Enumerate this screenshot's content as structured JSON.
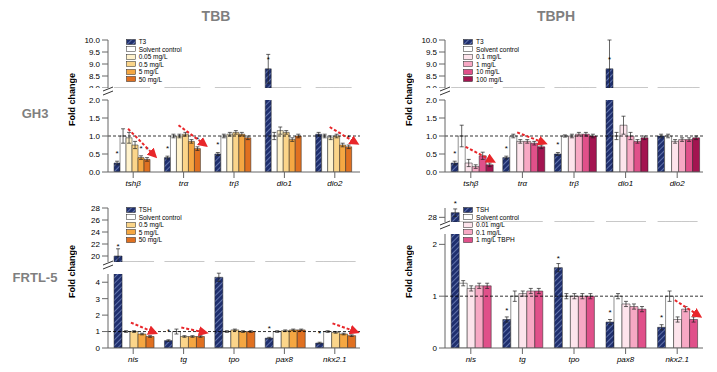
{
  "figure": {
    "columns": [
      "TBB",
      "TBPH"
    ],
    "rows": [
      "GH3",
      "FRTL-5"
    ]
  },
  "chart_data": [
    {
      "type": "bar",
      "ylabel": "Fold change",
      "categories": [
        "tshβ",
        "trα",
        "trβ",
        "dio1",
        "dio2"
      ],
      "series": [
        {
          "name": "T3",
          "color": "#1f2f6e",
          "values": [
            0.25,
            0.4,
            0.5,
            8.8,
            1.05
          ],
          "errors": [
            0.05,
            0.04,
            0.04,
            0.6,
            0.05
          ],
          "significance": [
            "*",
            "*",
            "*",
            "*",
            null
          ]
        },
        {
          "name": "Solvent control",
          "color": "#ffffff",
          "values": [
            1,
            1,
            1,
            1,
            1
          ],
          "errors": [
            0.2,
            0.05,
            0.05,
            0.1,
            0.05
          ]
        },
        {
          "name": "0.05 mg/L",
          "color": "#fff2cc",
          "values": [
            0.95,
            1.0,
            1.05,
            1.15,
            0.95
          ],
          "errors": [
            0.15,
            0.05,
            0.05,
            0.1,
            0.05
          ]
        },
        {
          "name": "0.5 mg/L",
          "color": "#fbd58a",
          "values": [
            0.75,
            1.05,
            1.1,
            1.1,
            1.0
          ],
          "errors": [
            0.1,
            0.05,
            0.05,
            0.05,
            0.05
          ]
        },
        {
          "name": "5 mg/L",
          "color": "#f5a742",
          "values": [
            0.4,
            0.85,
            1.05,
            0.9,
            0.75
          ],
          "errors": [
            0.05,
            0.05,
            0.05,
            0.05,
            0.05
          ],
          "significance": [
            "*",
            null,
            null,
            null,
            null
          ]
        },
        {
          "name": "50 mg/L",
          "color": "#e07020",
          "values": [
            0.35,
            0.65,
            0.95,
            1.0,
            0.7
          ],
          "errors": [
            0.05,
            0.05,
            0.05,
            0.05,
            0.05
          ],
          "significance": [
            "*",
            "*",
            null,
            null,
            "*"
          ]
        }
      ],
      "ylim": [
        0,
        10
      ],
      "ybreak": [
        2,
        8
      ],
      "yticks": [
        {
          "value": 0,
          "label": "0.0"
        },
        {
          "value": 0.5,
          "label": "0.5"
        },
        {
          "value": 1,
          "label": "1.0"
        },
        {
          "value": 1.5,
          "label": "1.5"
        },
        {
          "value": 2,
          "label": "2.0"
        },
        {
          "value": 8,
          "label": "8.0"
        },
        {
          "value": 8.5,
          "label": "8.5"
        },
        {
          "value": 9,
          "label": "9.0"
        },
        {
          "value": 9.5,
          "label": "9.5"
        },
        {
          "value": 10,
          "label": "10.0"
        }
      ],
      "hline": 1,
      "legend": "upper left",
      "trend_arrows": [
        "tshβ",
        "trα",
        "dio2"
      ]
    },
    {
      "type": "bar",
      "ylabel": "Fold change",
      "categories": [
        "tshβ",
        "trα",
        "trβ",
        "dio1",
        "dio2"
      ],
      "series": [
        {
          "name": "T3",
          "color": "#1f2f6e",
          "values": [
            0.25,
            0.4,
            0.5,
            8.8,
            1.0
          ],
          "errors": [
            0.05,
            0.04,
            0.04,
            1.2,
            0.05
          ],
          "significance": [
            "*",
            "*",
            "*",
            "*",
            null
          ]
        },
        {
          "name": "Solvent control",
          "color": "#ffffff",
          "values": [
            1,
            1,
            1,
            1,
            1
          ],
          "errors": [
            0.3,
            0.05,
            0.03,
            0.1,
            0.05
          ]
        },
        {
          "name": "0.1 mg/L",
          "color": "#fde4ec",
          "values": [
            0.25,
            0.85,
            1.0,
            1.3,
            0.85
          ],
          "errors": [
            0.1,
            0.05,
            0.05,
            0.25,
            0.05
          ]
        },
        {
          "name": "1 mg/L",
          "color": "#f7a8c4",
          "values": [
            0.15,
            0.85,
            1.05,
            1.0,
            0.9
          ],
          "errors": [
            0.05,
            0.05,
            0.05,
            0.1,
            0.05
          ]
        },
        {
          "name": "10 mg/L",
          "color": "#e0508a",
          "values": [
            0.45,
            0.8,
            1.05,
            0.85,
            0.9
          ],
          "errors": [
            0.1,
            0.05,
            0.05,
            0.05,
            0.05
          ]
        },
        {
          "name": "100 mg/L",
          "color": "#a31450",
          "values": [
            0.2,
            0.7,
            1.0,
            0.95,
            0.95
          ],
          "errors": [
            0.05,
            0.05,
            0.05,
            0.05,
            0.05
          ]
        }
      ],
      "ylim": [
        0,
        10
      ],
      "ybreak": [
        2,
        8
      ],
      "yticks": [
        {
          "value": 0,
          "label": "0.0"
        },
        {
          "value": 0.5,
          "label": "0.5"
        },
        {
          "value": 1,
          "label": "1.0"
        },
        {
          "value": 1.5,
          "label": "1.5"
        },
        {
          "value": 2,
          "label": "2.0"
        },
        {
          "value": 8,
          "label": "8.0"
        },
        {
          "value": 8.5,
          "label": "8.5"
        },
        {
          "value": 9,
          "label": "9.0"
        },
        {
          "value": 9.5,
          "label": "9.5"
        },
        {
          "value": 10,
          "label": "10.0"
        }
      ],
      "hline": 1,
      "legend": "upper left",
      "trend_arrows": [
        "tshβ",
        "trα"
      ]
    },
    {
      "type": "bar",
      "ylabel": "Fold change",
      "categories": [
        "nis",
        "tg",
        "tpo",
        "pax8",
        "nkx2.1"
      ],
      "series": [
        {
          "name": "TSH",
          "color": "#1f2f6e",
          "values": [
            20,
            0.45,
            4.3,
            0.6,
            0.3
          ],
          "errors": [
            1.2,
            0.05,
            0.25,
            0.05,
            0.05
          ],
          "significance": [
            "*",
            "*",
            "*",
            "*",
            "*"
          ]
        },
        {
          "name": "Solvent control",
          "color": "#ffffff",
          "values": [
            1,
            1,
            1,
            1,
            1
          ],
          "errors": [
            0.05,
            0.15,
            0.05,
            0.05,
            0.05
          ]
        },
        {
          "name": "0.5 mg/L",
          "color": "#fbd58a",
          "values": [
            1.0,
            0.7,
            1.1,
            1.05,
            0.95
          ],
          "errors": [
            0.05,
            0.05,
            0.05,
            0.05,
            0.05
          ]
        },
        {
          "name": "5 mg/L",
          "color": "#f5a742",
          "values": [
            0.85,
            0.7,
            1.0,
            1.1,
            0.85
          ],
          "errors": [
            0.05,
            0.05,
            0.05,
            0.05,
            0.05
          ]
        },
        {
          "name": "50 mg/L",
          "color": "#e07020",
          "values": [
            0.7,
            0.7,
            1.0,
            1.1,
            0.75
          ],
          "errors": [
            0.05,
            0.05,
            0.05,
            0.05,
            0.05
          ]
        }
      ],
      "ylim": [
        0,
        28
      ],
      "ybreak": [
        4.5,
        19
      ],
      "yticks": [
        0,
        1,
        2,
        3,
        4,
        20,
        22,
        24,
        26,
        28
      ],
      "hline": 1,
      "legend": "upper left",
      "trend_arrows": [
        "nis",
        "tg",
        "nkx2.1"
      ]
    },
    {
      "type": "bar",
      "ylabel": "Fold change",
      "categories": [
        "nis",
        "tg",
        "tpo",
        "pax8",
        "nkx2.1"
      ],
      "series": [
        {
          "name": "TSH",
          "color": "#1f2f6e",
          "values": [
            29,
            0.55,
            1.55,
            0.5,
            0.4
          ],
          "errors": [
            0.8,
            0.05,
            0.08,
            0.05,
            0.05
          ],
          "significance": [
            "*",
            "*",
            "*",
            "*",
            "*"
          ]
        },
        {
          "name": "Solvent control",
          "color": "#ffffff",
          "values": [
            1.25,
            1,
            1,
            1,
            1
          ],
          "errors": [
            0.05,
            0.1,
            0.05,
            0.05,
            0.1
          ]
        },
        {
          "name": "0.01 mg/L",
          "color": "#fde4ec",
          "values": [
            1.15,
            1.05,
            1.0,
            0.85,
            0.55
          ],
          "errors": [
            0.05,
            0.05,
            0.05,
            0.05,
            0.05
          ]
        },
        {
          "name": "0.1 mg/L",
          "color": "#f7a8c4",
          "values": [
            1.2,
            1.1,
            1.0,
            0.8,
            0.75
          ],
          "errors": [
            0.05,
            0.05,
            0.05,
            0.05,
            0.05
          ]
        },
        {
          "name": "1 mg/L TBPH",
          "color": "#e0508a",
          "values": [
            1.2,
            1.1,
            1.0,
            0.75,
            0.55
          ],
          "errors": [
            0.05,
            0.05,
            0.05,
            0.05,
            0.05
          ]
        }
      ],
      "ylim": [
        0,
        30
      ],
      "ybreak": [
        2.2,
        27
      ],
      "yticks": [
        0,
        1,
        2,
        28
      ],
      "hline": 1,
      "legend": "upper left",
      "trend_arrows": [
        "nkx2.1"
      ]
    }
  ]
}
